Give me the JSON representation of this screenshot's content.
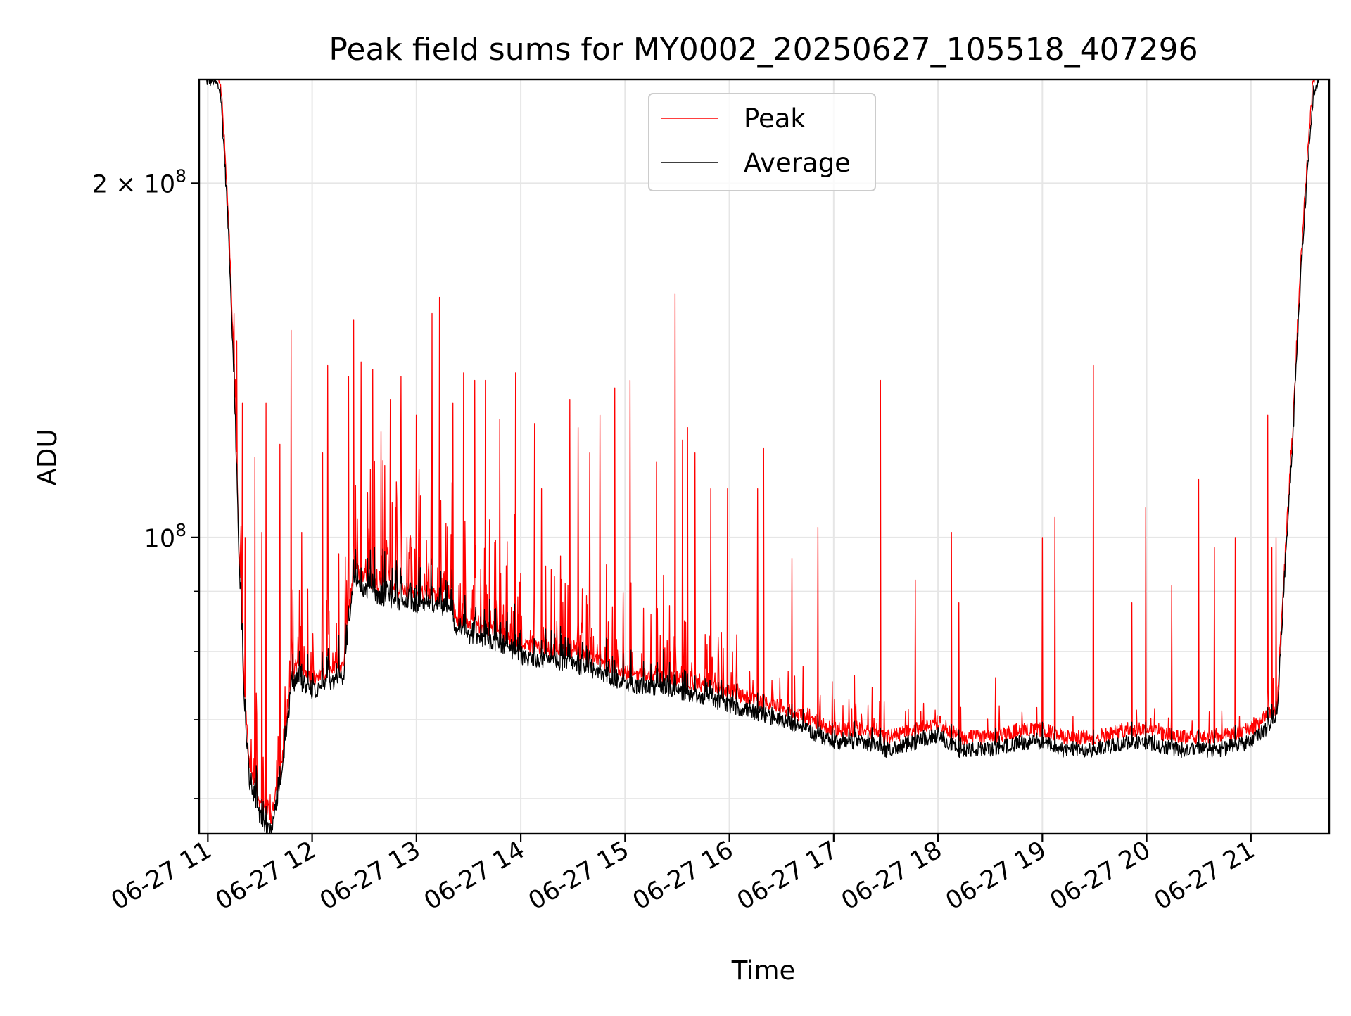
{
  "chart_data": {
    "type": "line",
    "title": "Peak field sums for MY0002_20250627_105518_407296",
    "xlabel": "Time",
    "ylabel": "ADU",
    "y_scale": "log",
    "xlim": [
      "2025-06-27 10:55",
      "2025-06-27 21:45"
    ],
    "ylim": [
      56000000,
      245000000
    ],
    "x_ticks": [
      "06-27 11",
      "06-27 12",
      "06-27 13",
      "06-27 14",
      "06-27 15",
      "06-27 16",
      "06-27 17",
      "06-27 18",
      "06-27 19",
      "06-27 20",
      "06-27 21"
    ],
    "x_tick_hours": [
      11,
      12,
      13,
      14,
      15,
      16,
      17,
      18,
      19,
      20,
      21
    ],
    "y_major_ticks": [
      {
        "value": 100000000,
        "label_base": "10",
        "label_exp": "8",
        "label_prefix": ""
      },
      {
        "value": 200000000,
        "label_base": "10",
        "label_exp": "8",
        "label_prefix": "2 × "
      }
    ],
    "y_minor_ticks": [
      60000000,
      70000000,
      80000000,
      90000000
    ],
    "grid": true,
    "legend_position": "top-center",
    "series": [
      {
        "name": "Peak",
        "color": "#ff0000"
      },
      {
        "name": "Average",
        "color": "#000000"
      }
    ],
    "baseline_hours": [
      10.98,
      11.05,
      11.12,
      11.2,
      11.25,
      11.3,
      11.35,
      11.4,
      11.5,
      11.6,
      11.7,
      11.8,
      11.85,
      11.9,
      12.0,
      12.3,
      12.4,
      12.5,
      12.8,
      13.3,
      13.4,
      13.8,
      14.0,
      14.5,
      15.0,
      15.5,
      16.0,
      16.5,
      17.0,
      17.3,
      17.5,
      17.8,
      18.0,
      18.2,
      18.5,
      18.8,
      19.0,
      19.2,
      19.5,
      19.8,
      20.0,
      20.3,
      20.7,
      21.0,
      21.25,
      21.3,
      21.4,
      21.5,
      21.6,
      21.65
    ],
    "baseline_adu": [
      245000000,
      245000000,
      240000000,
      180000000,
      135000000,
      95000000,
      72000000,
      62000000,
      58000000,
      56000000,
      62000000,
      74000000,
      76000000,
      75000000,
      74000000,
      76000000,
      92000000,
      90000000,
      88000000,
      87000000,
      83000000,
      81000000,
      79000000,
      78000000,
      75000000,
      74000000,
      72000000,
      70000000,
      67000000,
      67000000,
      66000000,
      67000000,
      68000000,
      66000000,
      66000000,
      67000000,
      67000000,
      66000000,
      66000000,
      67000000,
      67000000,
      66000000,
      66000000,
      67000000,
      70000000,
      85000000,
      120000000,
      180000000,
      240000000,
      245000000
    ],
    "peak_spikes": [
      {
        "x": 11.25,
        "y": 155000000
      },
      {
        "x": 11.28,
        "y": 147000000
      },
      {
        "x": 11.33,
        "y": 130000000
      },
      {
        "x": 11.36,
        "y": 100000000
      },
      {
        "x": 11.45,
        "y": 117000000
      },
      {
        "x": 11.52,
        "y": 101000000
      },
      {
        "x": 11.56,
        "y": 130000000
      },
      {
        "x": 11.69,
        "y": 120000000
      },
      {
        "x": 11.8,
        "y": 150000000
      },
      {
        "x": 11.9,
        "y": 101000000
      },
      {
        "x": 12.1,
        "y": 118000000
      },
      {
        "x": 12.15,
        "y": 140000000
      },
      {
        "x": 12.35,
        "y": 137000000
      },
      {
        "x": 12.4,
        "y": 153000000
      },
      {
        "x": 12.47,
        "y": 141000000
      },
      {
        "x": 12.58,
        "y": 139000000
      },
      {
        "x": 12.66,
        "y": 123000000
      },
      {
        "x": 12.75,
        "y": 131000000
      },
      {
        "x": 12.85,
        "y": 137000000
      },
      {
        "x": 13.0,
        "y": 127000000
      },
      {
        "x": 13.15,
        "y": 155000000
      },
      {
        "x": 13.22,
        "y": 160000000
      },
      {
        "x": 13.35,
        "y": 130000000
      },
      {
        "x": 13.45,
        "y": 138000000
      },
      {
        "x": 13.56,
        "y": 136000000
      },
      {
        "x": 13.66,
        "y": 136000000
      },
      {
        "x": 13.8,
        "y": 126000000
      },
      {
        "x": 13.95,
        "y": 138000000
      },
      {
        "x": 14.13,
        "y": 125000000
      },
      {
        "x": 14.2,
        "y": 110000000
      },
      {
        "x": 14.47,
        "y": 131000000
      },
      {
        "x": 14.55,
        "y": 124000000
      },
      {
        "x": 14.66,
        "y": 118000000
      },
      {
        "x": 14.76,
        "y": 127000000
      },
      {
        "x": 14.9,
        "y": 134000000
      },
      {
        "x": 15.05,
        "y": 136000000
      },
      {
        "x": 15.3,
        "y": 116000000
      },
      {
        "x": 15.48,
        "y": 161000000
      },
      {
        "x": 15.55,
        "y": 121000000
      },
      {
        "x": 15.6,
        "y": 124000000
      },
      {
        "x": 15.67,
        "y": 118000000
      },
      {
        "x": 15.82,
        "y": 110000000
      },
      {
        "x": 15.98,
        "y": 110000000
      },
      {
        "x": 16.27,
        "y": 110000000
      },
      {
        "x": 16.33,
        "y": 119000000
      },
      {
        "x": 16.6,
        "y": 96000000
      },
      {
        "x": 16.85,
        "y": 102000000
      },
      {
        "x": 17.45,
        "y": 136000000
      },
      {
        "x": 17.78,
        "y": 92000000
      },
      {
        "x": 18.13,
        "y": 101000000
      },
      {
        "x": 18.2,
        "y": 88000000
      },
      {
        "x": 18.55,
        "y": 76000000
      },
      {
        "x": 19.0,
        "y": 100000000
      },
      {
        "x": 19.12,
        "y": 104000000
      },
      {
        "x": 19.49,
        "y": 140000000
      },
      {
        "x": 19.86,
        "y": 88000000
      },
      {
        "x": 19.99,
        "y": 106000000
      },
      {
        "x": 20.24,
        "y": 91000000
      },
      {
        "x": 20.5,
        "y": 112000000
      },
      {
        "x": 20.65,
        "y": 98000000
      },
      {
        "x": 20.85,
        "y": 100000000
      },
      {
        "x": 21.16,
        "y": 127000000
      },
      {
        "x": 21.2,
        "y": 98000000
      },
      {
        "x": 21.24,
        "y": 100000000
      }
    ]
  }
}
